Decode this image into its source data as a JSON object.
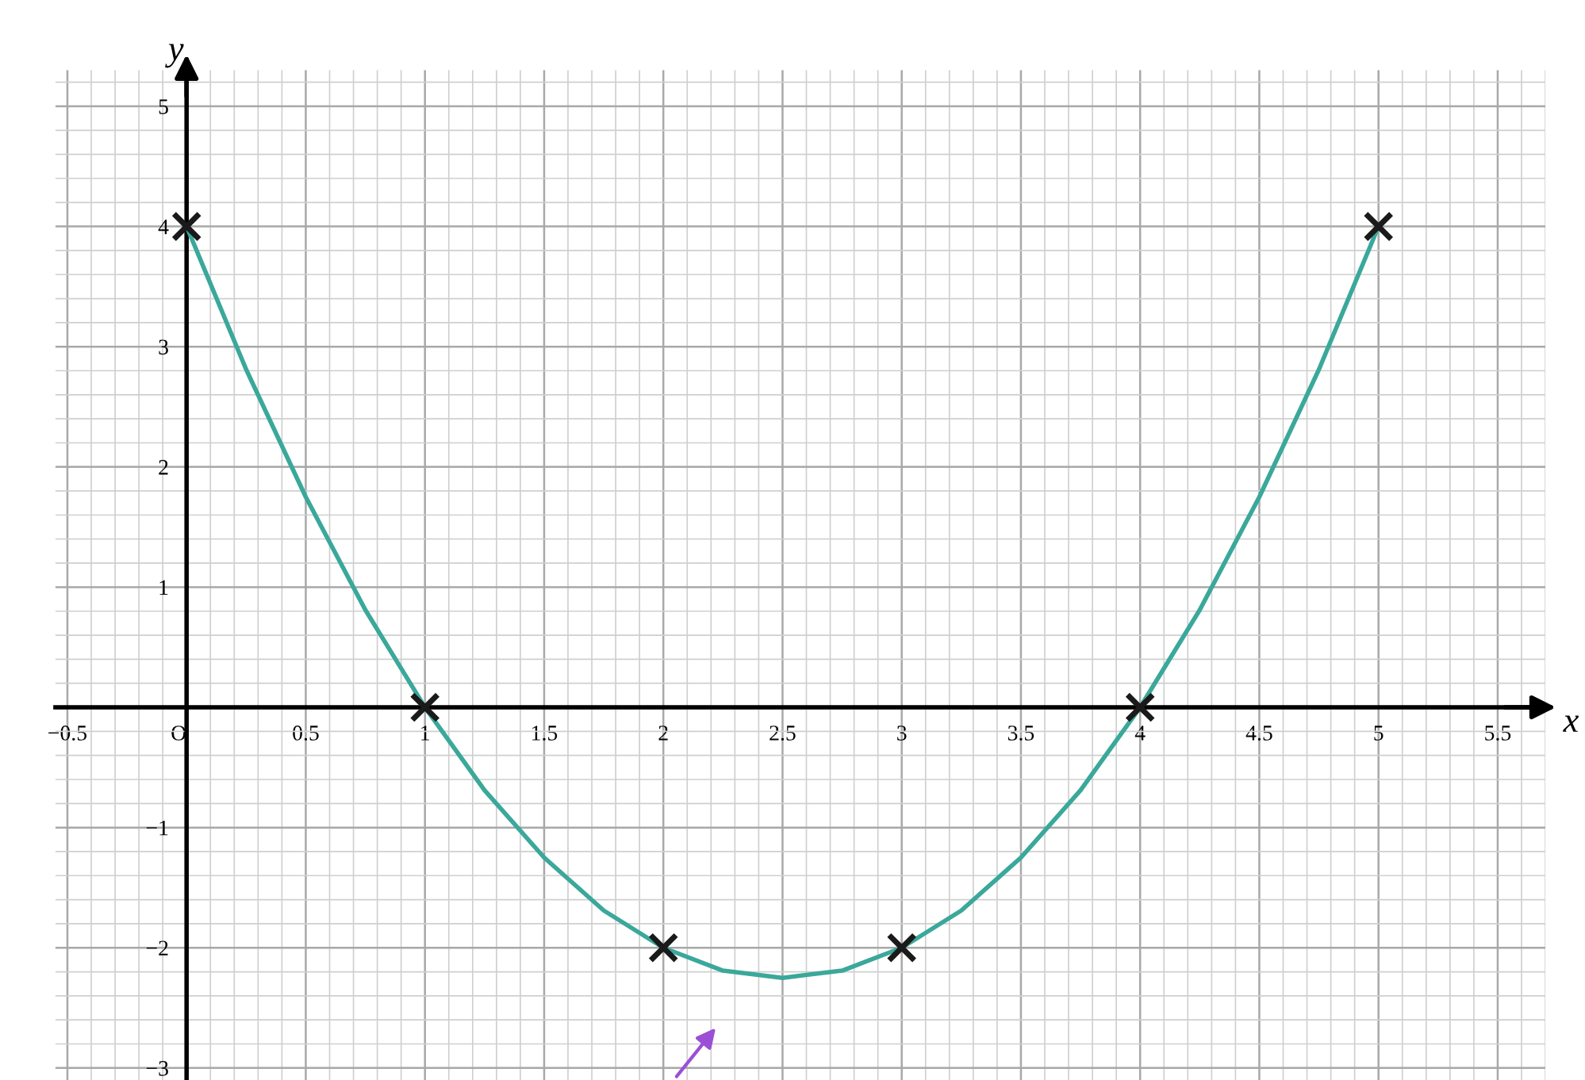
{
  "chart_data": {
    "type": "line",
    "xlabel": "x",
    "ylabel": "y",
    "xlim": [
      -0.55,
      5.7
    ],
    "ylim": [
      -3.1,
      5.3
    ],
    "xticks": [
      {
        "value": -0.5,
        "label": "−0.5"
      },
      {
        "value": 0,
        "label": "O"
      },
      0.5,
      1,
      1.5,
      2,
      2.5,
      3,
      3.5,
      4,
      4.5,
      5,
      5.5
    ],
    "yticks": [
      {
        "value": -3,
        "label": "−3"
      },
      {
        "value": -2,
        "label": "−2"
      },
      {
        "value": -1,
        "label": "−1"
      },
      1,
      2,
      3,
      4,
      5
    ],
    "grid": true,
    "series": [
      {
        "color": "#3aa89a",
        "x": [
          0,
          0.25,
          0.5,
          0.75,
          1,
          1.25,
          1.5,
          1.75,
          2,
          2.25,
          2.5,
          2.75,
          3,
          3.25,
          3.5,
          3.75,
          4,
          4.25,
          4.5,
          4.75,
          5
        ],
        "values": [
          4,
          2.81,
          1.75,
          0.81,
          0,
          -0.69,
          -1.25,
          -1.69,
          -2,
          -2.19,
          -2.25,
          -2.19,
          -2,
          -1.69,
          -1.25,
          -0.69,
          0,
          0.81,
          1.75,
          2.81,
          4
        ]
      },
      {
        "type": "scatter",
        "marker": "cross",
        "color": "#1a1a1a",
        "x": [
          0,
          1,
          2,
          3,
          4,
          5
        ],
        "values": [
          4,
          0,
          -2,
          -2,
          0,
          4
        ]
      }
    ]
  }
}
